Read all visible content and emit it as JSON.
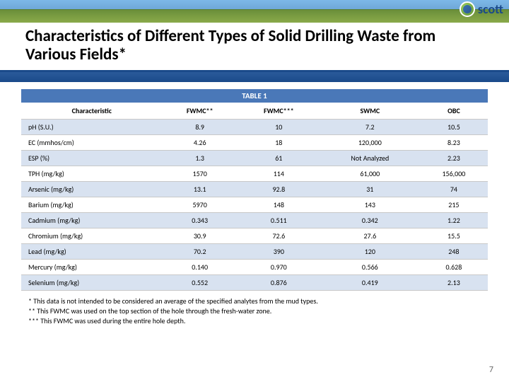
{
  "brand": "scott",
  "title": "Characteristics of Different Types of Solid Drilling Waste from Various Fields*",
  "table": {
    "caption": "TABLE 1",
    "columns": [
      "Characteristic",
      "FWMC**",
      "FWMC***",
      "SWMC",
      "OBC"
    ],
    "rows": [
      [
        "pH (S.U.)",
        "8.9",
        "10",
        "7.2",
        "10.5"
      ],
      [
        "EC (mmhos/cm)",
        "4.26",
        "18",
        "120,000",
        "8.23"
      ],
      [
        "ESP (%)",
        "1.3",
        "61",
        "Not Analyzed",
        "2.23"
      ],
      [
        "TPH (mg/kg)",
        "1570",
        "114",
        "61,000",
        "156,000"
      ],
      [
        "Arsenic (mg/kg)",
        "13.1",
        "92.8",
        "31",
        "74"
      ],
      [
        "Barium (mg/kg)",
        "5970",
        "148",
        "143",
        "215"
      ],
      [
        "Cadmium (mg/kg)",
        "0.343",
        "0.511",
        "0.342",
        "1.22"
      ],
      [
        "Chromium (mg/kg)",
        "30.9",
        "72.6",
        "27.6",
        "15.5"
      ],
      [
        "Lead (mg/kg)",
        "70.2",
        "390",
        "120",
        "248"
      ],
      [
        "Mercury (mg/kg)",
        "0.140",
        "0.970",
        "0.566",
        "0.628"
      ],
      [
        "Selenium (mg/kg)",
        "0.552",
        "0.876",
        "0.419",
        "2.13"
      ]
    ],
    "header_bg": "#4a78b8",
    "alt_row_bg": "#d8e2f0",
    "border_color": "#c8c8c8"
  },
  "footnotes": [
    "*     This data is not intended to be considered an average of the specified analytes from the mud types.",
    "**   This FWMC was used on the top section of the hole through the fresh-water zone.",
    "*** This FWMC was used during the entire hole depth."
  ],
  "page_number": "7",
  "colors": {
    "title_underline": "#1a4a8a",
    "banner_blue": "#2a5a9a"
  }
}
